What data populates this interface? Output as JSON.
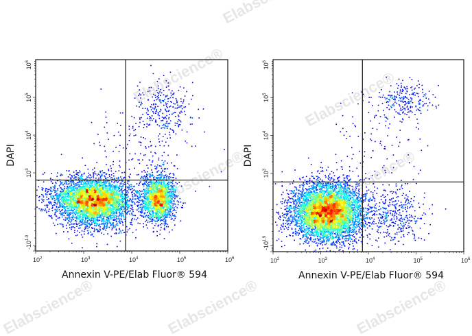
{
  "watermark": "Elabscience®",
  "chart_data": [
    {
      "type": "scatter",
      "subtype": "flow-cytometry-density-dot-plot",
      "xlabel": "Annexin V-PE/Elab Fluor® 594",
      "ylabel": "DAPI",
      "x_scale": "log",
      "xlim": [
        100,
        1000000
      ],
      "x_ticks": [
        {
          "base": "10",
          "exp": "2"
        },
        {
          "base": "10",
          "exp": "3"
        },
        {
          "base": "10",
          "exp": "4"
        },
        {
          "base": "10",
          "exp": "5"
        },
        {
          "base": "10",
          "exp": "6"
        }
      ],
      "y_scale": "biexponential",
      "ylim": [
        -79,
        1000000
      ],
      "y_ticks": [
        {
          "base": "-10",
          "exp": "1.9"
        },
        {
          "base": "10",
          "exp": "3"
        },
        {
          "base": "10",
          "exp": "4"
        },
        {
          "base": "10",
          "exp": "5"
        },
        {
          "base": "10",
          "exp": "6"
        }
      ],
      "quadrant_gate": {
        "x": 7500,
        "y": 900
      },
      "color_scale": "density (blue-green-yellow-red)",
      "populations": [
        {
          "x_center": 1500,
          "y_center": 650,
          "x_spread_decades": 0.42,
          "y_spread": 0.28,
          "count": 3600
        },
        {
          "x_center": 35000,
          "y_center": 650,
          "x_spread_decades": 0.17,
          "y_spread": 0.32,
          "count": 1900
        },
        {
          "x_center": 1800,
          "y_center": 500,
          "x_spread_decades": 0.35,
          "y_spread": 0.35,
          "count": 1000
        },
        {
          "x_center": 45000,
          "y_center": 60000,
          "x_spread_decades": 0.3,
          "y_spread": 0.35,
          "count": 260
        },
        {
          "x_center": 20000,
          "y_center": 5000,
          "x_spread_decades": 0.5,
          "y_spread": 0.6,
          "count": 160
        }
      ]
    },
    {
      "type": "scatter",
      "subtype": "flow-cytometry-density-dot-plot",
      "xlabel": "Annexin V-PE/Elab Fluor® 594",
      "ylabel": "DAPI",
      "x_scale": "log",
      "xlim": [
        100,
        1000000
      ],
      "x_ticks": [
        {
          "base": "10",
          "exp": "2"
        },
        {
          "base": "10",
          "exp": "3"
        },
        {
          "base": "10",
          "exp": "4"
        },
        {
          "base": "10",
          "exp": "5"
        },
        {
          "base": "10",
          "exp": "6"
        }
      ],
      "y_scale": "biexponential",
      "ylim": [
        -79,
        1000000
      ],
      "y_ticks": [
        {
          "base": "-10",
          "exp": "1.9"
        },
        {
          "base": "10",
          "exp": "3"
        },
        {
          "base": "10",
          "exp": "4"
        },
        {
          "base": "10",
          "exp": "5"
        },
        {
          "base": "10",
          "exp": "6"
        }
      ],
      "quadrant_gate": {
        "x": 7500,
        "y": 880
      },
      "color_scale": "density (blue-green-yellow-red)",
      "populations": [
        {
          "x_center": 1400,
          "y_center": 480,
          "x_spread_decades": 0.38,
          "y_spread": 0.38,
          "count": 5600
        },
        {
          "x_center": 40000,
          "y_center": 450,
          "x_spread_decades": 0.3,
          "y_spread": 0.4,
          "count": 380
        },
        {
          "x_center": 55000,
          "y_center": 90000,
          "x_spread_decades": 0.3,
          "y_spread": 0.25,
          "count": 230
        },
        {
          "x_center": 15000,
          "y_center": 8000,
          "x_spread_decades": 0.6,
          "y_spread": 0.6,
          "count": 90
        }
      ]
    }
  ]
}
